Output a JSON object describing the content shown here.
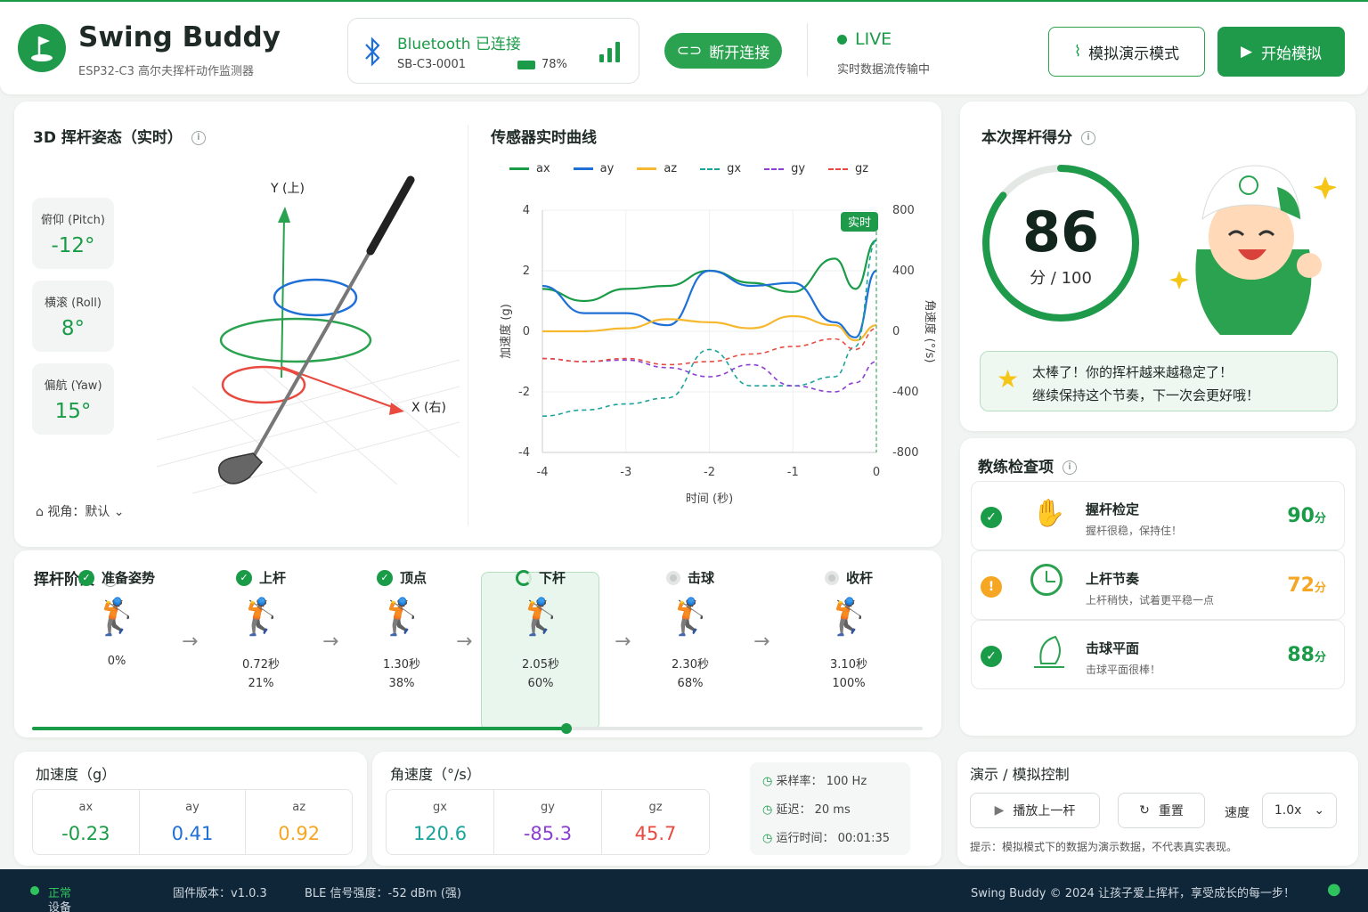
{
  "header": {
    "app_name": "Swing Buddy",
    "subtitle": "ESP32-C3 高尔夫挥杆动作监测器",
    "bt_status": "Bluetooth 已连接",
    "device_id": "SB-C3-0001",
    "battery": "78%",
    "disconnect": "断开连接",
    "live": "LIVE",
    "live_sub": "实时数据流传输中",
    "demo_mode": "模拟演示模式",
    "start_sim": "开始模拟"
  },
  "pose": {
    "title": "3D 挥杆姿态（实时）",
    "pitch_label": "俯仰 (Pitch)",
    "pitch": "-12°",
    "roll_label": "横滚 (Roll)",
    "roll": "8°",
    "yaw_label": "偏航 (Yaw)",
    "yaw": "15°",
    "axis_y": "Y (上)",
    "axis_x": "X (右)",
    "view_label": "视角：",
    "view_value": "默认"
  },
  "sensor_chart": {
    "title": "传感器实时曲线",
    "live_tag": "实时"
  },
  "chart_data": {
    "type": "line",
    "title": "传感器实时曲线",
    "xlabel": "时间 (秒)",
    "ylabel": "加速度 (g)",
    "y2label": "角速度 (°/s)",
    "x": [
      -4,
      -3.5,
      -3,
      -2.5,
      -2,
      -1.5,
      -1,
      -0.5,
      -0.25,
      0
    ],
    "ylim": [
      -4,
      4
    ],
    "y2lim": [
      -800,
      800
    ],
    "xticks": [
      "-4",
      "-3",
      "-2",
      "-1",
      "0"
    ],
    "yticks": [
      "4",
      "2",
      "0",
      "-2",
      "-4"
    ],
    "y2ticks": [
      "800",
      "400",
      "0",
      "-400",
      "-800"
    ],
    "legend_pos": "top",
    "series": [
      {
        "name": "ax",
        "axis": "left",
        "color": "#1a9b47",
        "dash": false,
        "values": [
          1.4,
          1.0,
          1.4,
          1.5,
          2.0,
          1.6,
          1.3,
          2.4,
          1.4,
          3.0
        ]
      },
      {
        "name": "ay",
        "axis": "left",
        "color": "#1e6fd6",
        "dash": false,
        "values": [
          1.5,
          0.6,
          0.6,
          0.2,
          2.0,
          1.5,
          1.6,
          0.3,
          -0.2,
          2.0
        ]
      },
      {
        "name": "az",
        "axis": "left",
        "color": "#f5b82e",
        "dash": false,
        "values": [
          0,
          0,
          0.1,
          0.4,
          0.3,
          0.1,
          0.5,
          0.2,
          -0.3,
          0.2
        ]
      },
      {
        "name": "gx",
        "axis": "right",
        "color": "#1aa39a",
        "dash": true,
        "values": [
          -560,
          -520,
          -480,
          -440,
          -120,
          -360,
          -360,
          -300,
          -100,
          600
        ]
      },
      {
        "name": "gy",
        "axis": "right",
        "color": "#8a3fd1",
        "dash": true,
        "values": [
          -180,
          -200,
          -190,
          -240,
          -300,
          -220,
          -360,
          -400,
          -340,
          -200
        ]
      },
      {
        "name": "gz",
        "axis": "right",
        "color": "#e84a3f",
        "dash": true,
        "values": [
          -180,
          -200,
          -180,
          -220,
          -200,
          -150,
          -100,
          -50,
          -120,
          20
        ]
      }
    ]
  },
  "score": {
    "title": "本次挥杆得分",
    "value": "86",
    "unit": "分 / 100",
    "progress": 0.86,
    "msg1": "太棒了！你的挥杆越来越稳定了！",
    "msg2": "继续保持这个节奏，下一次会更好哦！"
  },
  "coach": {
    "title": "教练检查项",
    "items": [
      {
        "title": "握杆检定",
        "sub": "握杆很稳，保持住！",
        "score": "90",
        "unit": "分",
        "status": "ok"
      },
      {
        "title": "上杆节奏",
        "sub": "上杆稍快，试着更平稳一点",
        "score": "72",
        "unit": "分",
        "status": "warn"
      },
      {
        "title": "击球平面",
        "sub": "击球平面很棒！",
        "score": "88",
        "unit": "分",
        "status": "ok"
      }
    ]
  },
  "phases": {
    "title": "挥杆阶段",
    "progress": 0.6,
    "items": [
      {
        "name": "准备姿势",
        "time": "",
        "pct": "0%"
      },
      {
        "name": "上杆",
        "time": "0.72秒",
        "pct": "21%"
      },
      {
        "name": "顶点",
        "time": "1.30秒",
        "pct": "38%"
      },
      {
        "name": "下杆",
        "time": "2.05秒",
        "pct": "60%"
      },
      {
        "name": "击球",
        "time": "2.30秒",
        "pct": "68%"
      },
      {
        "name": "收杆",
        "time": "3.10秒",
        "pct": "100%"
      }
    ]
  },
  "accel": {
    "title": "加速度（g）",
    "ax_l": "ax",
    "ax": "-0.23",
    "ay_l": "ay",
    "ay": "0.41",
    "az_l": "az",
    "az": "0.92"
  },
  "gyro": {
    "title": "角速度（°/s）",
    "gx_l": "gx",
    "gx": "120.6",
    "gy_l": "gy",
    "gy": "-85.3",
    "gz_l": "gz",
    "gz": "45.7"
  },
  "stats": {
    "rate": "采样率：  100 Hz",
    "latency": "延迟：  20 ms",
    "runtime": "运行时间：  00:01:35"
  },
  "demo": {
    "title": "演示 / 模拟控制",
    "play": "播放上一杆",
    "reset": "重置",
    "speed_label": "速度",
    "speed": "1.0x",
    "hint": "提示：模拟模式下的数据为演示数据，不代表真实表现。"
  },
  "footer": {
    "status_label": "设备状态：",
    "status": "正常",
    "fw": "固件版本：v1.0.3",
    "ble": "BLE 信号强度：-52 dBm (强)",
    "copy": "Swing Buddy © 2024  让孩子爱上挥杆，享受成长的每一步！"
  }
}
